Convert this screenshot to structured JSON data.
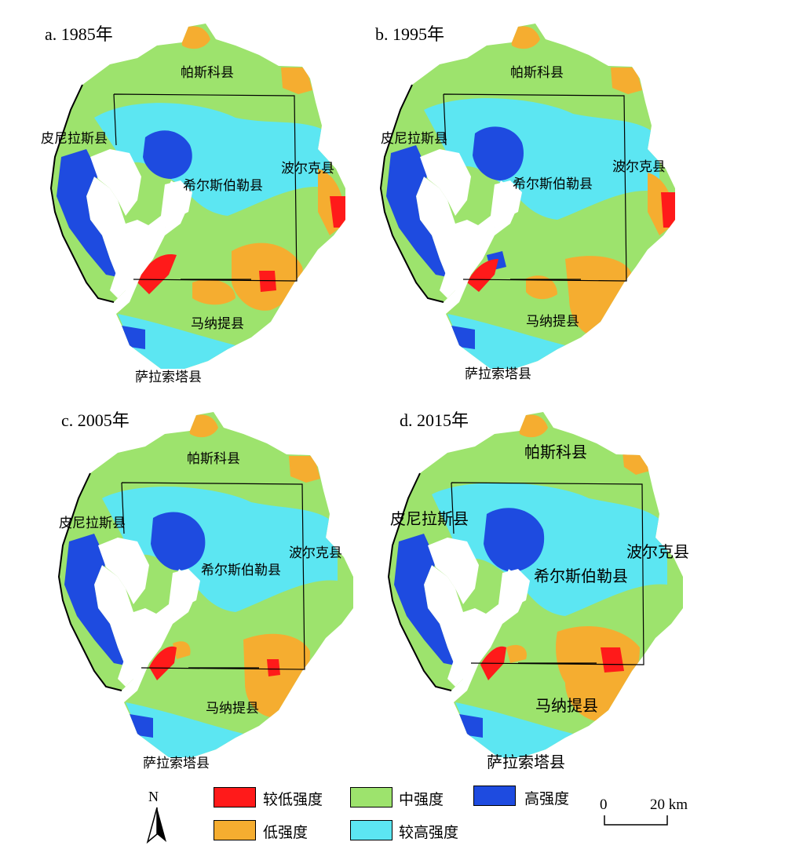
{
  "legend": {
    "items": [
      {
        "label": "较低强度",
        "color": "#ff1a1a"
      },
      {
        "label": "中强度",
        "color": "#9de36d"
      },
      {
        "label": "高强度",
        "color": "#1e4be0"
      },
      {
        "label": "低强度",
        "color": "#f5ad30"
      },
      {
        "label": "较高强度",
        "color": "#5ce6f2"
      }
    ]
  },
  "scale_bar": {
    "zero": "0",
    "distance": "20 km"
  },
  "north_arrow": {
    "label": "N"
  },
  "panels": [
    {
      "title": "a. 1985年",
      "counties": {
        "pasco": "帕斯科县",
        "pinellas": "皮尼拉斯县",
        "hillsborough": "希尔斯伯勒县",
        "polk": "波尔克县",
        "manatee": "马纳提县",
        "sarasota": "萨拉索塔县"
      }
    },
    {
      "title": "b. 1995年",
      "counties": {
        "pasco": "帕斯科县",
        "pinellas": "皮尼拉斯县",
        "hillsborough": "希尔斯伯勒县",
        "polk": "波尔克县",
        "manatee": "马纳提县",
        "sarasota": "萨拉索塔县"
      }
    },
    {
      "title": "c. 2005年",
      "counties": {
        "pasco": "帕斯科县",
        "pinellas": "皮尼拉斯县",
        "hillsborough": "希尔斯伯勒县",
        "polk": "波尔克县",
        "manatee": "马纳提县",
        "sarasota": "萨拉索塔县"
      }
    },
    {
      "title": "d. 2015年",
      "counties": {
        "pasco": "帕斯科县",
        "pinellas": "皮尼拉斯县",
        "hillsborough": "希尔斯伯勒县",
        "polk": "波尔克县",
        "manatee": "马纳提县",
        "sarasota": "萨拉索塔县"
      }
    }
  ]
}
